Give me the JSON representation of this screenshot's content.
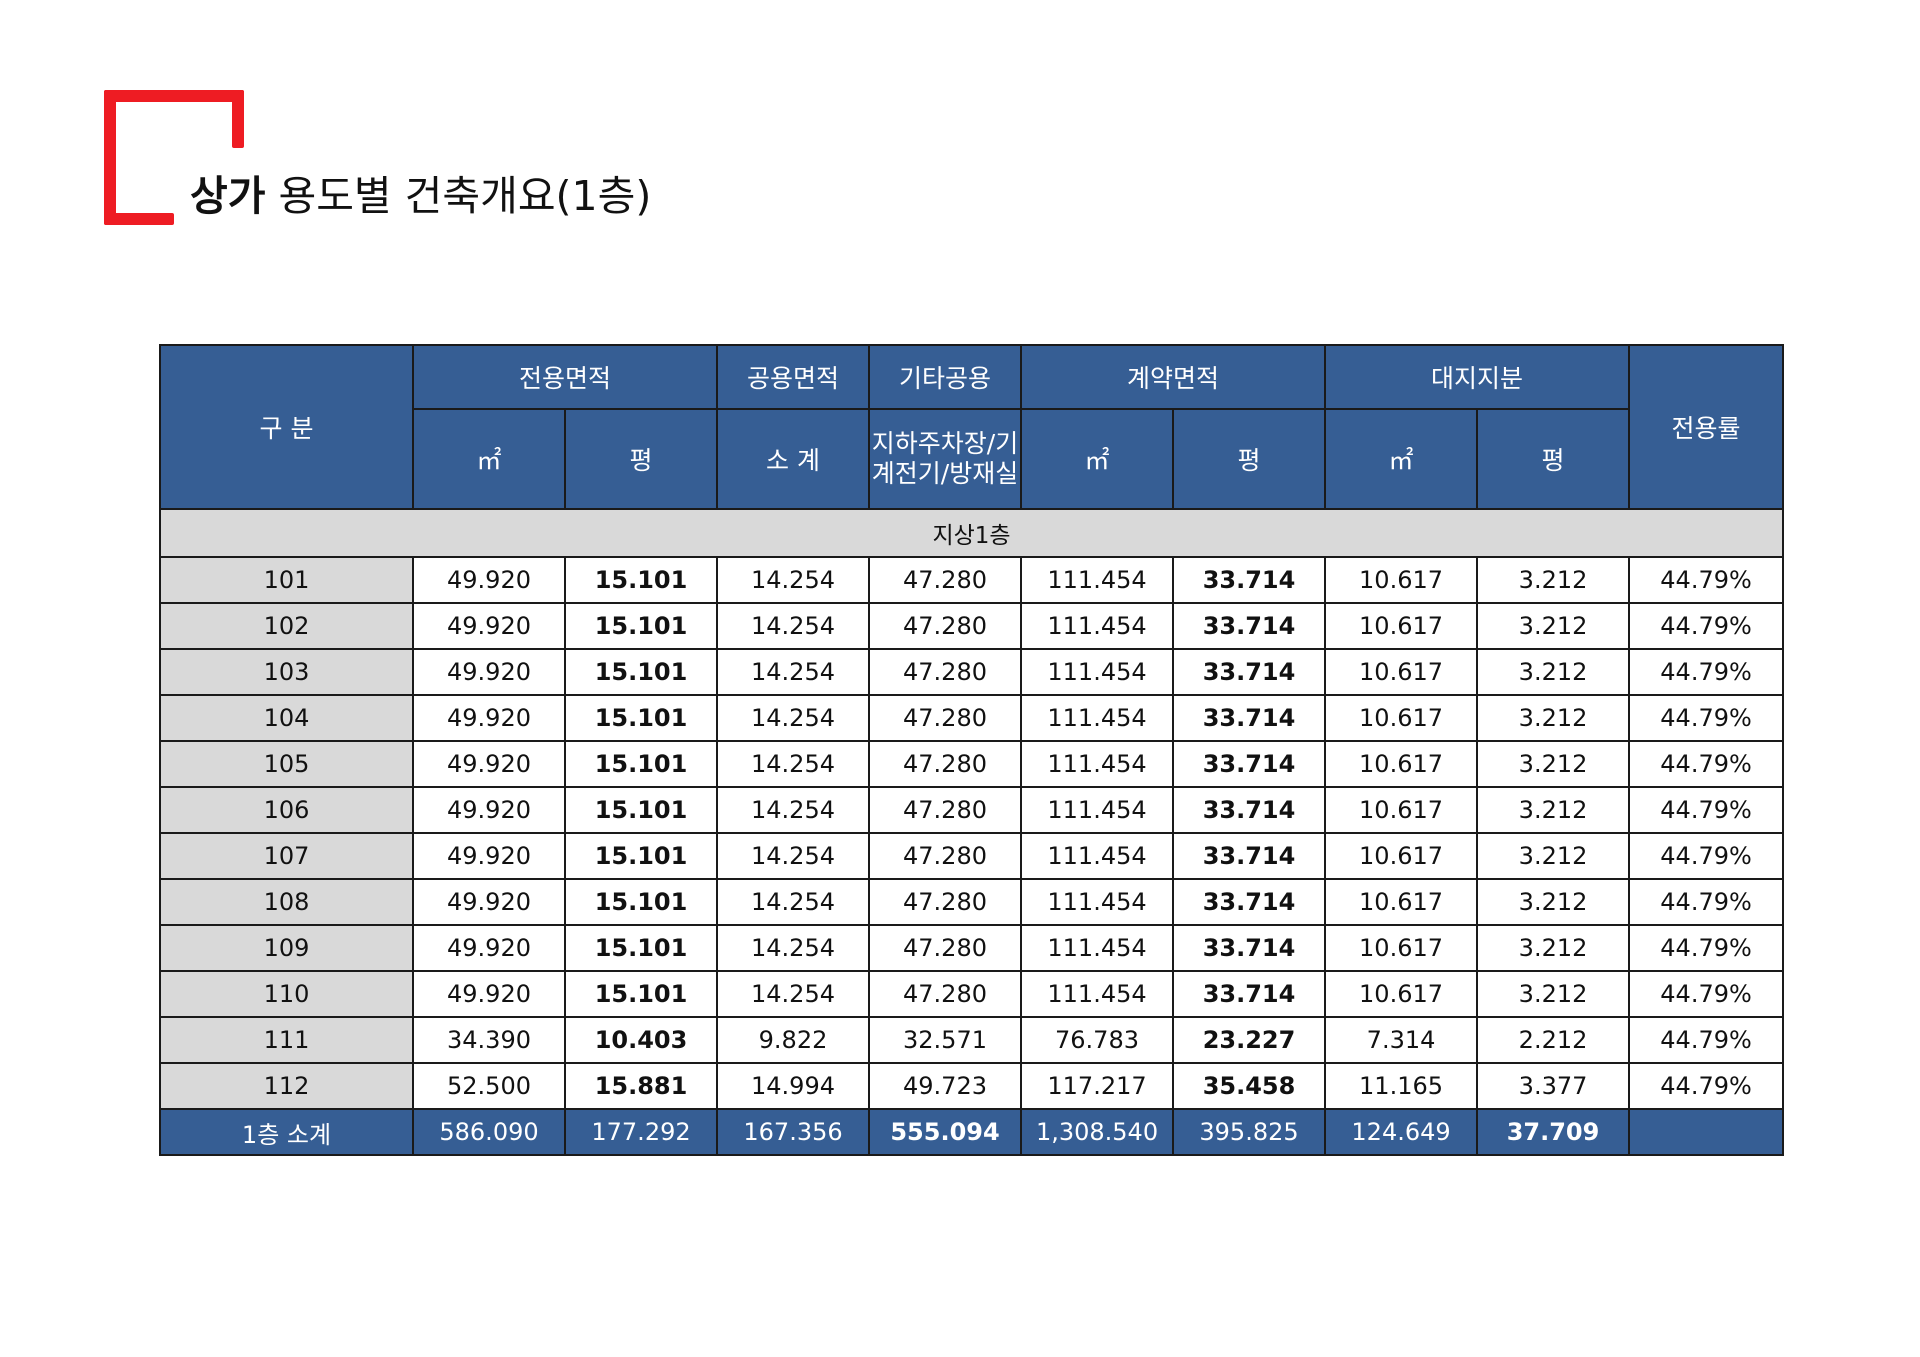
{
  "title": {
    "bold": "상가",
    "rest": " 용도별 건축개요(1층)"
  },
  "header": {
    "category": "구 분",
    "exclusive": "전용면적",
    "common": "공용면적",
    "other_common": "기타공용",
    "contract": "계약면적",
    "land": "대지지분",
    "ratio": "전용률",
    "sqm": "㎡",
    "pyeong": "평",
    "subtotal": "소 계",
    "parking": "지하주차장/기계전기/방재실"
  },
  "section_label": "지상1층",
  "rows": [
    [
      "101",
      "49.920",
      "15.101",
      "14.254",
      "47.280",
      "111.454",
      "33.714",
      "10.617",
      "3.212",
      "44.79%"
    ],
    [
      "102",
      "49.920",
      "15.101",
      "14.254",
      "47.280",
      "111.454",
      "33.714",
      "10.617",
      "3.212",
      "44.79%"
    ],
    [
      "103",
      "49.920",
      "15.101",
      "14.254",
      "47.280",
      "111.454",
      "33.714",
      "10.617",
      "3.212",
      "44.79%"
    ],
    [
      "104",
      "49.920",
      "15.101",
      "14.254",
      "47.280",
      "111.454",
      "33.714",
      "10.617",
      "3.212",
      "44.79%"
    ],
    [
      "105",
      "49.920",
      "15.101",
      "14.254",
      "47.280",
      "111.454",
      "33.714",
      "10.617",
      "3.212",
      "44.79%"
    ],
    [
      "106",
      "49.920",
      "15.101",
      "14.254",
      "47.280",
      "111.454",
      "33.714",
      "10.617",
      "3.212",
      "44.79%"
    ],
    [
      "107",
      "49.920",
      "15.101",
      "14.254",
      "47.280",
      "111.454",
      "33.714",
      "10.617",
      "3.212",
      "44.79%"
    ],
    [
      "108",
      "49.920",
      "15.101",
      "14.254",
      "47.280",
      "111.454",
      "33.714",
      "10.617",
      "3.212",
      "44.79%"
    ],
    [
      "109",
      "49.920",
      "15.101",
      "14.254",
      "47.280",
      "111.454",
      "33.714",
      "10.617",
      "3.212",
      "44.79%"
    ],
    [
      "110",
      "49.920",
      "15.101",
      "14.254",
      "47.280",
      "111.454",
      "33.714",
      "10.617",
      "3.212",
      "44.79%"
    ],
    [
      "111",
      "34.390",
      "10.403",
      "9.822",
      "32.571",
      "76.783",
      "23.227",
      "7.314",
      "2.212",
      "44.79%"
    ],
    [
      "112",
      "52.500",
      "15.881",
      "14.994",
      "49.723",
      "117.217",
      "35.458",
      "11.165",
      "3.377",
      "44.79%"
    ]
  ],
  "total": [
    "1층 소계",
    "586.090",
    "177.292",
    "167.356",
    "555.094",
    "1,308.540",
    "395.825",
    "124.649",
    "37.709",
    ""
  ],
  "colors": {
    "header_bg": "#365e94",
    "label_bg": "#d9d9d9",
    "accent": "#ee1c23"
  }
}
